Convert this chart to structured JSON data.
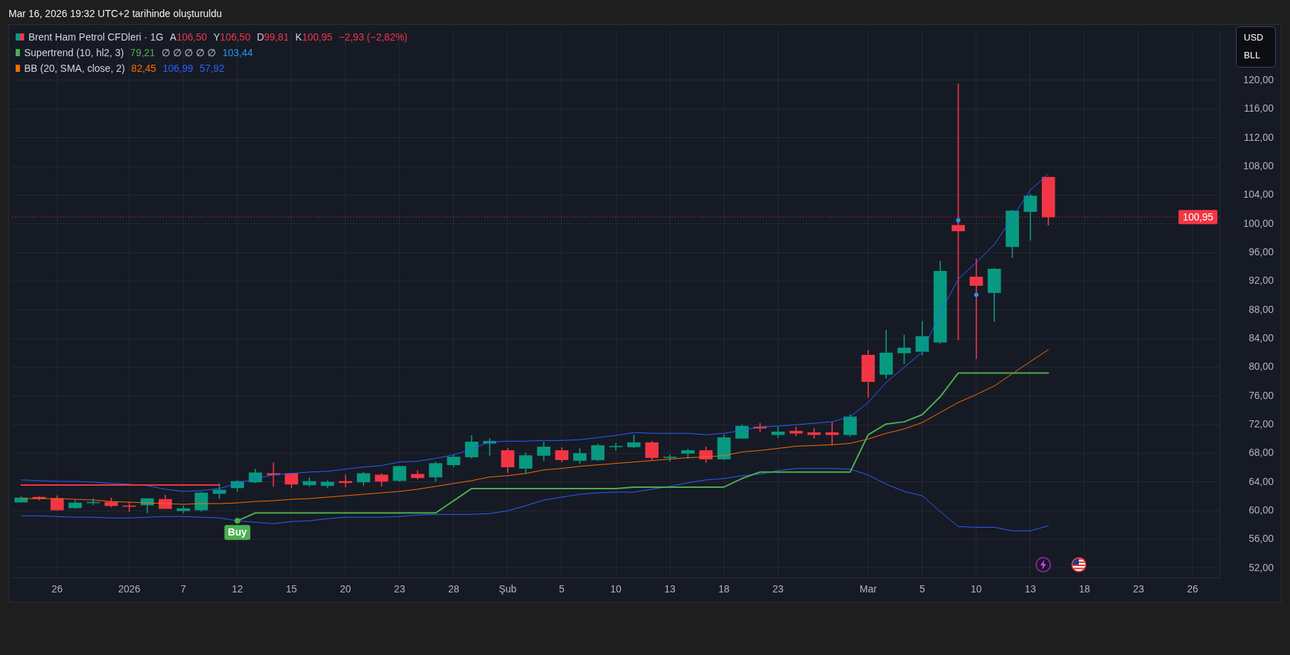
{
  "chart_data": {
    "type": "candlestick",
    "title": "Mar 16, 2026 19:32 UTC+2 tarihinde oluşturuldu",
    "categories": [
      null,
      null,
      "26",
      null,
      null,
      null,
      "2026",
      null,
      null,
      "7",
      null,
      null,
      "12",
      null,
      null,
      "15",
      null,
      null,
      "20",
      null,
      null,
      "23",
      null,
      null,
      "28",
      null,
      null,
      "Şub",
      null,
      null,
      "5",
      null,
      null,
      "10",
      null,
      null,
      "13",
      null,
      null,
      "18",
      null,
      null,
      "23",
      null,
      null,
      null,
      null,
      "Mar",
      null,
      null,
      "5",
      null,
      null,
      "10",
      null,
      null,
      "13",
      null,
      null,
      "18",
      null,
      null,
      "23",
      null,
      null,
      "26",
      null
    ],
    "series": [
      {
        "name": "Brent Ham Petrol CFDleri · 1G",
        "ohlc": [
          [
            61.2,
            62.0,
            61.2,
            61.8
          ],
          [
            61.9,
            62.0,
            61.5,
            61.7
          ],
          [
            61.7,
            62.1,
            60.1,
            60.1
          ],
          [
            60.4,
            61.5,
            60.3,
            61.1
          ],
          [
            61.1,
            61.7,
            60.8,
            61.2
          ],
          [
            61.2,
            61.8,
            60.5,
            60.7
          ],
          [
            60.7,
            61.2,
            59.9,
            60.6
          ],
          [
            60.8,
            61.7,
            59.7,
            61.7
          ],
          [
            61.6,
            62.2,
            60.3,
            60.3
          ],
          [
            60.0,
            60.7,
            59.7,
            60.3
          ],
          [
            60.1,
            62.6,
            59.9,
            62.5
          ],
          [
            62.4,
            63.8,
            61.7,
            62.9
          ],
          [
            63.2,
            64.2,
            62.7,
            64.1
          ],
          [
            64.0,
            65.8,
            63.9,
            65.3
          ],
          [
            65.2,
            66.7,
            63.4,
            65.0
          ],
          [
            65.2,
            65.2,
            63.2,
            63.7
          ],
          [
            63.6,
            64.6,
            63.4,
            64.1
          ],
          [
            63.5,
            64.2,
            63.2,
            64.0
          ],
          [
            64.1,
            65.0,
            63.3,
            63.9
          ],
          [
            64.0,
            65.4,
            63.5,
            65.2
          ],
          [
            65.0,
            65.2,
            63.4,
            64.1
          ],
          [
            64.2,
            66.2,
            64.1,
            66.2
          ],
          [
            65.1,
            65.6,
            64.4,
            64.6
          ],
          [
            64.7,
            66.8,
            64.1,
            66.6
          ],
          [
            66.4,
            67.8,
            66.1,
            67.5
          ],
          [
            67.5,
            70.5,
            67.3,
            69.6
          ],
          [
            69.4,
            70.1,
            67.7,
            69.7
          ],
          [
            68.4,
            68.7,
            65.3,
            66.1
          ],
          [
            65.9,
            68.1,
            65.2,
            67.7
          ],
          [
            67.7,
            69.6,
            67.0,
            68.9
          ],
          [
            68.4,
            68.8,
            66.8,
            67.1
          ],
          [
            67.0,
            68.7,
            66.6,
            68.0
          ],
          [
            67.1,
            69.3,
            67.0,
            69.1
          ],
          [
            68.9,
            69.4,
            68.4,
            69.0
          ],
          [
            68.9,
            70.6,
            68.8,
            69.5
          ],
          [
            69.5,
            69.7,
            67.1,
            67.4
          ],
          [
            67.4,
            67.8,
            66.9,
            67.5
          ],
          [
            68.0,
            68.6,
            67.3,
            68.4
          ],
          [
            68.4,
            68.9,
            66.7,
            67.2
          ],
          [
            67.2,
            70.6,
            67.1,
            70.2
          ],
          [
            70.1,
            72.0,
            70.1,
            71.8
          ],
          [
            71.7,
            72.2,
            71.0,
            71.5
          ],
          [
            70.6,
            71.7,
            70.2,
            71.0
          ],
          [
            71.1,
            71.7,
            70.4,
            70.8
          ],
          [
            70.9,
            71.5,
            70.1,
            70.6
          ],
          [
            70.9,
            72.3,
            69.2,
            70.6
          ],
          [
            70.6,
            73.4,
            70.4,
            73.1
          ],
          [
            81.7,
            82.4,
            75.8,
            78.0
          ],
          [
            79.0,
            85.2,
            78.5,
            82.0
          ],
          [
            82.0,
            84.5,
            80.5,
            82.7
          ],
          [
            82.2,
            86.4,
            81.7,
            84.3
          ],
          [
            83.5,
            94.8,
            83.3,
            93.4
          ],
          [
            99.8,
            119.5,
            83.8,
            99.0
          ],
          [
            92.6,
            95.1,
            81.2,
            91.4
          ],
          [
            90.4,
            93.8,
            86.4,
            93.7
          ],
          [
            96.8,
            101.9,
            95.3,
            101.8
          ],
          [
            101.7,
            104.1,
            97.7,
            103.88
          ],
          [
            106.5,
            106.5,
            99.81,
            100.95
          ],
          null,
          null,
          null,
          null,
          null,
          null,
          null,
          null,
          null
        ],
        "colors": [
          "#089981",
          "#f23645",
          "#f23645",
          "#089981",
          "#089981",
          "#f23645",
          "#f23645",
          "#089981",
          "#f23645",
          "#089981",
          "#089981",
          "#089981",
          "#089981",
          "#089981",
          "#f23645",
          "#f23645",
          "#089981",
          "#089981",
          "#f23645",
          "#089981",
          "#f23645",
          "#089981",
          "#f23645",
          "#089981",
          "#089981",
          "#089981",
          "#089981",
          "#f23645",
          "#089981",
          "#089981",
          "#f23645",
          "#089981",
          "#089981",
          "#089981",
          "#089981",
          "#f23645",
          "#089981",
          "#089981",
          "#f23645",
          "#089981",
          "#089981",
          "#f23645",
          "#089981",
          "#f23645",
          "#f23645",
          "#f23645",
          "#089981",
          "#f23645",
          "#089981",
          "#089981",
          "#089981",
          "#089981",
          "#f23645",
          "#f23645",
          "#089981",
          "#089981",
          "#089981",
          "#f23645",
          null,
          null,
          null,
          null,
          null,
          null,
          null,
          null,
          null
        ]
      },
      {
        "type": "line",
        "name": "Supertrend (10, hl2, 3)",
        "color": "#4caf50",
        "values": [
          null,
          null,
          null,
          null,
          null,
          null,
          null,
          null,
          null,
          null,
          null,
          null,
          58.6,
          59.7,
          59.7,
          59.7,
          59.7,
          59.7,
          59.7,
          59.7,
          59.7,
          59.7,
          59.7,
          59.7,
          61.4,
          63.1,
          63.1,
          63.1,
          63.1,
          63.1,
          63.1,
          63.1,
          63.1,
          63.1,
          63.3,
          63.3,
          63.3,
          63.3,
          63.3,
          63.3,
          64.5,
          65.4,
          65.4,
          65.4,
          65.4,
          65.4,
          65.4,
          70.6,
          72.1,
          72.4,
          73.4,
          75.9,
          79.21,
          79.21,
          79.21,
          79.21,
          79.21,
          79.21,
          null,
          null,
          null,
          null,
          null,
          null,
          null,
          null,
          null
        ]
      },
      {
        "type": "line",
        "color": "#f23645",
        "values": [
          63.6,
          63.6,
          63.6,
          63.6,
          63.6,
          63.6,
          63.6,
          63.6,
          63.6,
          63.6,
          63.6,
          63.6,
          null,
          null,
          null,
          null,
          null,
          null,
          null,
          null,
          null,
          null,
          null,
          null,
          null,
          null,
          null,
          null,
          null,
          null,
          null,
          null,
          null,
          null,
          null,
          null,
          null,
          null,
          null,
          null,
          null,
          null,
          null,
          null,
          null,
          null,
          null,
          null,
          null,
          null,
          null,
          null,
          null,
          null,
          null,
          null,
          null,
          null,
          null,
          null,
          null,
          null,
          null,
          null,
          null,
          null,
          null
        ]
      },
      {
        "type": "scatter",
        "color": "#2196f3",
        "marker": "circle",
        "values": [
          null,
          null,
          null,
          null,
          null,
          null,
          null,
          null,
          null,
          null,
          null,
          null,
          null,
          null,
          null,
          null,
          null,
          null,
          null,
          null,
          null,
          null,
          null,
          null,
          null,
          null,
          null,
          null,
          null,
          null,
          null,
          null,
          null,
          null,
          null,
          null,
          null,
          null,
          null,
          null,
          null,
          null,
          null,
          null,
          null,
          null,
          null,
          null,
          null,
          null,
          null,
          null,
          100.5,
          90.1,
          null,
          null,
          null,
          null,
          null,
          null,
          null,
          null,
          null,
          null,
          null,
          null,
          null
        ]
      },
      {
        "type": "line",
        "name": "BB (20, SMA, close, 2)",
        "color": "#ff6d00",
        "values": [
          61.7,
          61.7,
          61.7,
          61.6,
          61.5,
          61.3,
          61.2,
          61.1,
          61.0,
          60.9,
          61.0,
          61.0,
          61.1,
          61.3,
          61.4,
          61.6,
          61.7,
          61.9,
          62.1,
          62.3,
          62.5,
          62.7,
          63.0,
          63.4,
          63.8,
          64.2,
          64.7,
          64.9,
          65.2,
          65.7,
          65.9,
          66.2,
          66.4,
          66.6,
          66.8,
          67.0,
          67.2,
          67.4,
          67.5,
          67.7,
          68.2,
          68.4,
          68.7,
          69.0,
          69.1,
          69.2,
          69.4,
          70.0,
          70.8,
          71.4,
          72.3,
          73.7,
          75.1,
          76.2,
          77.4,
          79.1,
          80.8,
          82.45,
          null,
          null,
          null,
          null,
          null,
          null,
          null,
          null,
          null
        ]
      },
      {
        "type": "line",
        "color": "#2962ff",
        "values": [
          64.3,
          64.2,
          64.1,
          64.1,
          64.0,
          63.8,
          63.7,
          63.5,
          63.0,
          62.7,
          62.8,
          63.1,
          63.8,
          64.5,
          65.0,
          65.2,
          65.4,
          65.5,
          65.8,
          66.1,
          66.3,
          66.8,
          66.9,
          67.3,
          67.8,
          68.6,
          69.6,
          69.7,
          69.7,
          69.8,
          69.8,
          69.9,
          70.2,
          70.5,
          70.9,
          70.8,
          70.8,
          70.8,
          70.6,
          70.8,
          71.2,
          71.7,
          71.8,
          72.0,
          72.2,
          72.4,
          73.1,
          75.1,
          77.9,
          80.0,
          82.1,
          87.6,
          92.3,
          94.6,
          97.1,
          100.9,
          104.7,
          106.99,
          null,
          null,
          null,
          null,
          null,
          null,
          null,
          null,
          null
        ]
      },
      {
        "type": "line",
        "color": "#2962ff",
        "values": [
          59.3,
          59.3,
          59.2,
          59.1,
          59.1,
          59.0,
          59.0,
          59.1,
          59.2,
          59.2,
          59.1,
          59.0,
          58.6,
          58.4,
          58.2,
          58.5,
          58.6,
          58.9,
          59.1,
          59.1,
          59.1,
          59.2,
          59.4,
          59.5,
          59.5,
          59.5,
          59.6,
          60.0,
          60.7,
          61.5,
          61.9,
          62.3,
          62.5,
          62.6,
          62.6,
          63.0,
          63.4,
          63.9,
          64.3,
          64.5,
          64.9,
          65.1,
          65.6,
          65.9,
          65.9,
          65.9,
          65.8,
          65.0,
          63.7,
          62.7,
          62.1,
          59.9,
          57.8,
          57.7,
          57.7,
          57.2,
          57.2,
          57.92,
          null,
          null,
          null,
          null,
          null,
          null,
          null,
          null,
          null
        ]
      }
    ],
    "ylim": [
      50.7,
      126.9
    ],
    "yticks": [
      {
        "value": 52,
        "label": "52,00"
      },
      {
        "value": 56,
        "label": "56,00"
      },
      {
        "value": 60,
        "label": "60,00"
      },
      {
        "value": 64,
        "label": "64,00"
      },
      {
        "value": 68,
        "label": "68,00"
      },
      {
        "value": 72,
        "label": "72,00"
      },
      {
        "value": 76,
        "label": "76,00"
      },
      {
        "value": 80,
        "label": "80,00"
      },
      {
        "value": 84,
        "label": "84,00"
      },
      {
        "value": 88,
        "label": "88,00"
      },
      {
        "value": 92,
        "label": "92,00"
      },
      {
        "value": 96,
        "label": "96,00"
      },
      {
        "value": 100,
        "label": "100,00"
      },
      {
        "value": 104,
        "label": "104,00"
      },
      {
        "value": 108,
        "label": "108,00"
      },
      {
        "value": 112,
        "label": "112,00"
      },
      {
        "value": 116,
        "label": "116,00"
      },
      {
        "value": 120,
        "label": "120,00"
      }
    ],
    "ref_lines": [
      {
        "axis": "y",
        "value": 100.95,
        "label": "100,95",
        "color": "#f23645",
        "line_style": "dotted"
      }
    ],
    "annotations": [
      "A106,50",
      "Y106,50",
      "D99,81",
      "K100,95",
      "−2,93 (−2,82%)",
      "79,21",
      "∅ ∅ ∅ ∅ ∅",
      "103,44",
      "82,45",
      "106,99",
      "57,92",
      "USD",
      "BLL",
      {
        "text": "Buy",
        "x": "12",
        "y": 58.6
      }
    ],
    "legend": "top left",
    "grid": true
  }
}
